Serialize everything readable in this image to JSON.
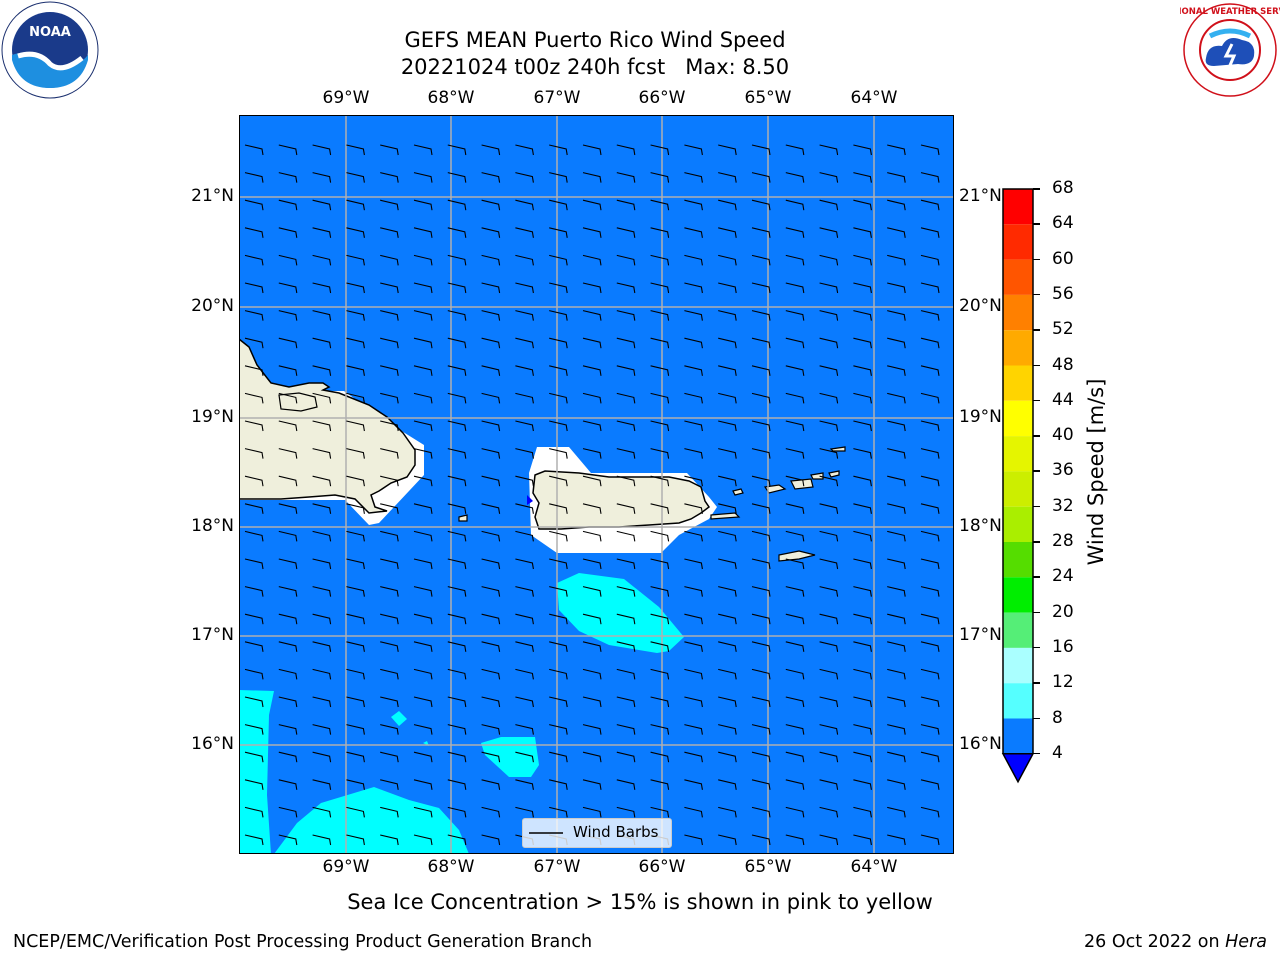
{
  "title": {
    "line1": "GEFS MEAN Puerto Rico Wind Speed",
    "line2": "20221024 t00z 240h fcst   Max: 8.50"
  },
  "map": {
    "lon_labels": [
      "69°W",
      "68°W",
      "67°W",
      "66°W",
      "65°W",
      "64°W"
    ],
    "lat_labels": [
      "21°N",
      "20°N",
      "19°N",
      "18°N",
      "17°N",
      "16°N"
    ],
    "background_color": "#0a7bff",
    "land_color": "#efefdc",
    "high_wind_color": "#00ffff",
    "legend_label": "Wind Barbs"
  },
  "colorbar": {
    "label": "Wind Speed [m/s]",
    "ticks": [
      "68",
      "64",
      "60",
      "56",
      "52",
      "48",
      "44",
      "40",
      "36",
      "32",
      "28",
      "24",
      "20",
      "16",
      "12",
      "8",
      "4"
    ],
    "colors": [
      "#ff0000",
      "#ff2a00",
      "#ff5500",
      "#ff8000",
      "#ffaa00",
      "#ffd400",
      "#ffff00",
      "#e5f500",
      "#ccee00",
      "#aaee00",
      "#55dd00",
      "#00ee00",
      "#55ee77",
      "#aaffff",
      "#55ffff",
      "#00ffff",
      "#0a7bff"
    ],
    "extend_color": "#0000ff"
  },
  "note": "Sea Ice Concentration > 15% is shown in pink to yellow",
  "footer": {
    "left": "NCEP/EMC/Verification Post Processing Product Generation Branch",
    "right_prefix": "26 Oct 2022 on ",
    "right_italic": "Hera"
  },
  "logos": {
    "noaa_text": "NOAA",
    "nws_text": "NATIONAL WEATHER SERVICE"
  }
}
